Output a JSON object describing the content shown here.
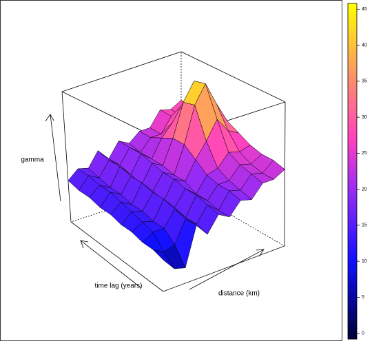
{
  "chart_data": {
    "type": "surface",
    "zlabel": "gamma",
    "ylabel": "time lag (years)",
    "xlabel": "distance (km)",
    "z": [
      [
        9,
        5,
        4,
        16,
        12,
        17,
        15,
        19,
        18,
        22,
        22,
        24
      ],
      [
        10,
        8,
        9,
        16,
        13,
        18,
        15,
        20,
        19,
        23,
        22,
        25
      ],
      [
        10,
        12,
        12,
        17,
        13,
        19,
        16,
        20,
        20,
        24,
        23,
        25
      ],
      [
        11,
        13,
        12,
        18,
        14,
        19,
        16,
        21,
        22,
        26,
        25,
        26
      ],
      [
        11,
        14,
        13,
        18,
        14,
        20,
        18,
        24,
        29,
        35,
        30,
        28
      ],
      [
        12,
        15,
        13,
        19,
        15,
        20,
        18,
        27,
        39,
        45,
        37,
        30
      ],
      [
        12,
        16,
        14,
        19,
        15,
        21,
        19,
        27,
        38,
        44,
        36,
        30
      ],
      [
        13,
        16,
        14,
        20,
        16,
        22,
        19,
        25,
        29,
        34,
        30,
        29
      ],
      [
        13,
        17,
        15,
        20,
        17,
        22,
        19,
        23,
        23,
        28,
        27,
        29
      ],
      [
        14,
        17,
        16,
        21,
        17,
        22,
        20,
        23,
        23,
        28,
        27,
        29
      ]
    ],
    "zlim": [
      -0.8,
      45.8
    ],
    "colorkey_ticks": [
      0,
      5,
      10,
      15,
      20,
      25,
      30,
      35,
      40,
      45
    ],
    "colorscale": [
      [
        -0.8,
        "#000033"
      ],
      [
        10,
        "#1010ff"
      ],
      [
        20,
        "#9a2cf5"
      ],
      [
        27,
        "#ff40c0"
      ],
      [
        35,
        "#ff8a70"
      ],
      [
        45.8,
        "#ffff00"
      ]
    ]
  }
}
